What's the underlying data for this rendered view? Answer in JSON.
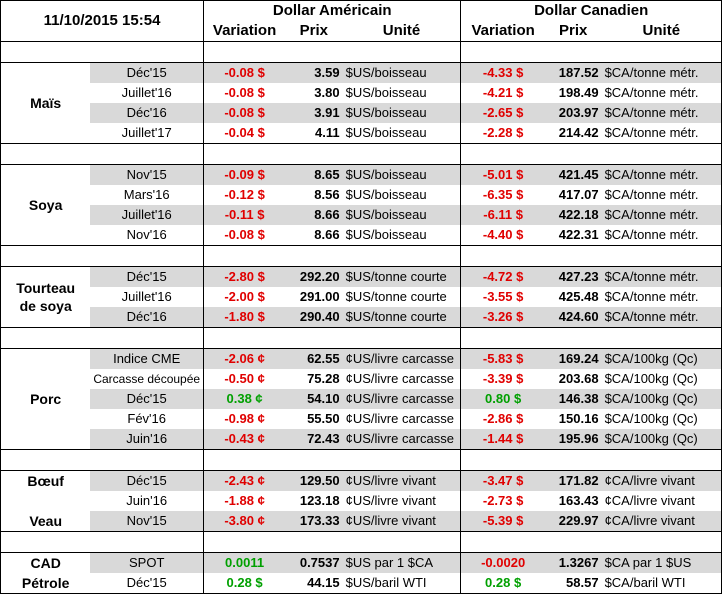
{
  "header": {
    "timestamp": "11/10/2015 15:54",
    "usd_group": "Dollar Américain",
    "cad_group": "Dollar Canadien",
    "cols": {
      "variation": "Variation",
      "prix": "Prix",
      "unite": "Unité"
    }
  },
  "colors": {
    "negative": "#e00000",
    "positive": "#00a000",
    "shade": "#d9d9d9"
  },
  "groups": [
    {
      "product": "Maïs",
      "rows": [
        {
          "contract": "Déc'15",
          "usd_var": "-0.08 $",
          "usd_prix": "3.59",
          "usd_unit": "$US/boisseau",
          "cad_var": "-4.33 $",
          "cad_prix": "187.52",
          "cad_unit": "$CA/tonne métr."
        },
        {
          "contract": "Juillet'16",
          "usd_var": "-0.08 $",
          "usd_prix": "3.80",
          "usd_unit": "$US/boisseau",
          "cad_var": "-4.21 $",
          "cad_prix": "198.49",
          "cad_unit": "$CA/tonne métr."
        },
        {
          "contract": "Déc'16",
          "usd_var": "-0.08 $",
          "usd_prix": "3.91",
          "usd_unit": "$US/boisseau",
          "cad_var": "-2.65 $",
          "cad_prix": "203.97",
          "cad_unit": "$CA/tonne métr."
        },
        {
          "contract": "Juillet'17",
          "usd_var": "-0.04 $",
          "usd_prix": "4.11",
          "usd_unit": "$US/boisseau",
          "cad_var": "-2.28 $",
          "cad_prix": "214.42",
          "cad_unit": "$CA/tonne métr."
        }
      ]
    },
    {
      "product": "Soya",
      "rows": [
        {
          "contract": "Nov'15",
          "usd_var": "-0.09 $",
          "usd_prix": "8.65",
          "usd_unit": "$US/boisseau",
          "cad_var": "-5.01 $",
          "cad_prix": "421.45",
          "cad_unit": "$CA/tonne métr."
        },
        {
          "contract": "Mars'16",
          "usd_var": "-0.12 $",
          "usd_prix": "8.56",
          "usd_unit": "$US/boisseau",
          "cad_var": "-6.35 $",
          "cad_prix": "417.07",
          "cad_unit": "$CA/tonne métr."
        },
        {
          "contract": "Juillet'16",
          "usd_var": "-0.11 $",
          "usd_prix": "8.66",
          "usd_unit": "$US/boisseau",
          "cad_var": "-6.11 $",
          "cad_prix": "422.18",
          "cad_unit": "$CA/tonne métr."
        },
        {
          "contract": "Nov'16",
          "usd_var": "-0.08 $",
          "usd_prix": "8.66",
          "usd_unit": "$US/boisseau",
          "cad_var": "-4.40 $",
          "cad_prix": "422.31",
          "cad_unit": "$CA/tonne métr."
        }
      ]
    },
    {
      "product_lines": [
        "Tourteau",
        "de soya"
      ],
      "rows": [
        {
          "contract": "Déc'15",
          "usd_var": "-2.80 $",
          "usd_prix": "292.20",
          "usd_unit": "$US/tonne courte",
          "cad_var": "-4.72 $",
          "cad_prix": "427.23",
          "cad_unit": "$CA/tonne métr."
        },
        {
          "contract": "Juillet'16",
          "usd_var": "-2.00 $",
          "usd_prix": "291.00",
          "usd_unit": "$US/tonne courte",
          "cad_var": "-3.55 $",
          "cad_prix": "425.48",
          "cad_unit": "$CA/tonne métr."
        },
        {
          "contract": "Déc'16",
          "usd_var": "-1.80 $",
          "usd_prix": "290.40",
          "usd_unit": "$US/tonne courte",
          "cad_var": "-3.26 $",
          "cad_prix": "424.60",
          "cad_unit": "$CA/tonne métr."
        }
      ]
    },
    {
      "product": "Porc",
      "rows": [
        {
          "contract": "Indice CME",
          "usd_var": "-2.06 ¢",
          "usd_prix": "62.55",
          "usd_unit": "¢US/livre carcasse",
          "cad_var": "-5.83 $",
          "cad_prix": "169.24",
          "cad_unit": "$CA/100kg (Qc)"
        },
        {
          "contract": "Carcasse découpée",
          "usd_var": "-0.50 ¢",
          "usd_prix": "75.28",
          "usd_unit": "¢US/livre carcasse",
          "cad_var": "-3.39 $",
          "cad_prix": "203.68",
          "cad_unit": "$CA/100kg (Qc)"
        },
        {
          "contract": "Déc'15",
          "usd_var": "0.38 ¢",
          "usd_prix": "54.10",
          "usd_unit": "¢US/livre carcasse",
          "cad_var": "0.80 $",
          "cad_prix": "146.38",
          "cad_unit": "$CA/100kg (Qc)"
        },
        {
          "contract": "Fév'16",
          "usd_var": "-0.98 ¢",
          "usd_prix": "55.50",
          "usd_unit": "¢US/livre carcasse",
          "cad_var": "-2.86 $",
          "cad_prix": "150.16",
          "cad_unit": "$CA/100kg (Qc)"
        },
        {
          "contract": "Juin'16",
          "usd_var": "-0.43 ¢",
          "usd_prix": "72.43",
          "usd_unit": "¢US/livre carcasse",
          "cad_var": "-1.44 $",
          "cad_prix": "195.96",
          "cad_unit": "$CA/100kg (Qc)"
        }
      ]
    },
    {
      "products": [
        "Bœuf",
        "Veau"
      ],
      "rows": [
        {
          "contract": "Déc'15",
          "usd_var": "-2.43 ¢",
          "usd_prix": "129.50",
          "usd_unit": "¢US/livre vivant",
          "cad_var": "-3.47 $",
          "cad_prix": "171.82",
          "cad_unit": "¢CA/livre vivant"
        },
        {
          "contract": "Juin'16",
          "usd_var": "-1.88 ¢",
          "usd_prix": "123.18",
          "usd_unit": "¢US/livre vivant",
          "cad_var": "-2.73 $",
          "cad_prix": "163.43",
          "cad_unit": "¢CA/livre vivant"
        },
        {
          "contract": "Nov'15",
          "usd_var": "-3.80 ¢",
          "usd_prix": "173.33",
          "usd_unit": "¢US/livre vivant",
          "cad_var": "-5.39 $",
          "cad_prix": "229.97",
          "cad_unit": "¢CA/livre vivant"
        }
      ]
    },
    {
      "products": [
        "CAD",
        "Pétrole"
      ],
      "rows": [
        {
          "contract": "SPOT",
          "usd_var": "0.0011",
          "usd_prix": "0.7537",
          "usd_unit": "$US par 1 $CA",
          "cad_var": "-0.0020",
          "cad_prix": "1.3267",
          "cad_unit": "$CA par 1 $US"
        },
        {
          "contract": "Déc'15",
          "usd_var": "0.28 $",
          "usd_prix": "44.15",
          "usd_unit": "$US/baril WTI",
          "cad_var": "0.28 $",
          "cad_prix": "58.57",
          "cad_unit": "$CA/baril WTI"
        }
      ]
    }
  ]
}
